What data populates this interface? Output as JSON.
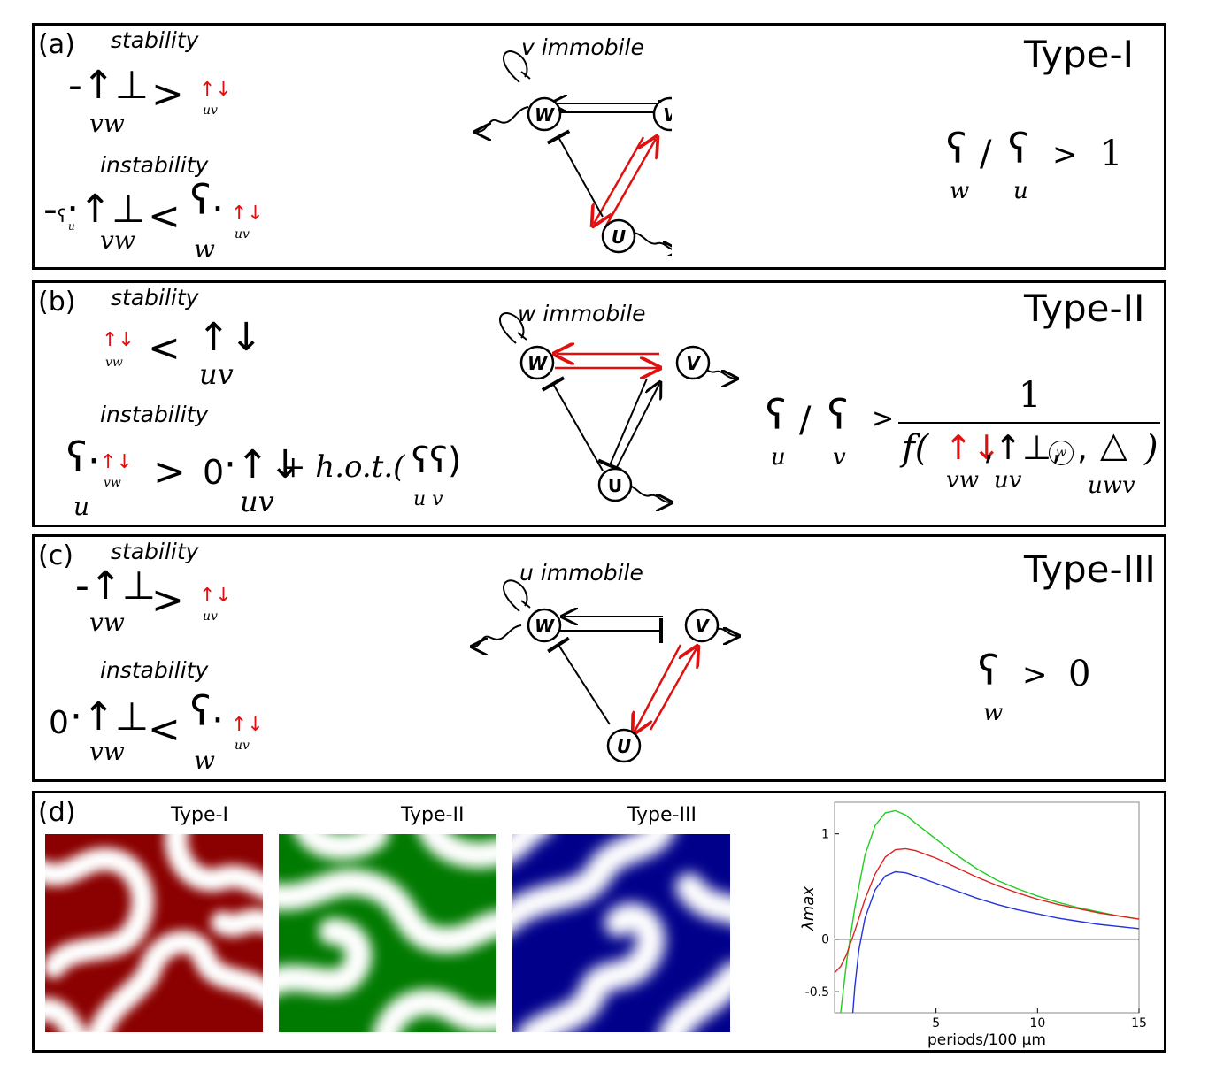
{
  "panels": [
    {
      "label": "(a)",
      "type": "Type-I",
      "stability": "stability",
      "instability": "instability",
      "immobile": "v immobile",
      "sub_vw": "vw",
      "sub_uv": "uv",
      "sub_w": "w",
      "sub_u": "u",
      "ratio_rhs": "1"
    },
    {
      "label": "(b)",
      "type": "Type-II",
      "stability": "stability",
      "instability": "instability",
      "immobile": "w immobile",
      "sub_vw": "vw",
      "sub_uv": "uv",
      "sub_u": "u",
      "sub_v": "v",
      "sub_uwv": "uwv",
      "sub_uv_pair": "u v",
      "zero": "0",
      "hot": "+ h.o.t.(",
      "ratio_num": "1",
      "f_label": "f(",
      "f_close": ")"
    },
    {
      "label": "(c)",
      "type": "Type-III",
      "stability": "stability",
      "instability": "instability",
      "immobile": "u immobile",
      "sub_vw": "vw",
      "sub_uv": "uv",
      "sub_w": "w",
      "zero": "0",
      "ratio_rhs": "0"
    }
  ],
  "nodes": {
    "w": "W",
    "v": "V",
    "u": "U"
  },
  "panel_d": {
    "label": "(d)",
    "pattern_titles": [
      "Type-I",
      "Type-II",
      "Type-III"
    ],
    "pattern_colors": [
      "#8b0000",
      "#007a00",
      "#00008b"
    ]
  },
  "chart_data": {
    "type": "line",
    "xlabel": "periods/100 μm",
    "ylabel": "λmax",
    "xlim": [
      0,
      15
    ],
    "ylim": [
      -0.7,
      1.3
    ],
    "xticks": [
      5,
      10,
      15
    ],
    "yticks": [
      {
        "v": 1,
        "t": "1"
      },
      {
        "v": 0,
        "t": "0"
      },
      {
        "v": -0.5,
        "t": "-0.5"
      }
    ],
    "series": [
      {
        "color": "#22cc22",
        "x": [
          0.3,
          0.6,
          1.0,
          1.5,
          2.0,
          2.5,
          3.0,
          3.5,
          4.0,
          5.0,
          6.0,
          7.0,
          8.0,
          9.0,
          10.0,
          11.0,
          12.0,
          13.0,
          14.0,
          15.0
        ],
        "y": [
          -0.7,
          -0.2,
          0.3,
          0.8,
          1.08,
          1.2,
          1.22,
          1.18,
          1.1,
          0.95,
          0.8,
          0.67,
          0.56,
          0.48,
          0.41,
          0.35,
          0.3,
          0.26,
          0.22,
          0.19
        ]
      },
      {
        "color": "#dd2222",
        "x": [
          0.0,
          0.3,
          0.6,
          1.0,
          1.5,
          2.0,
          2.5,
          3.0,
          3.5,
          4.0,
          5.0,
          6.0,
          7.0,
          8.0,
          9.0,
          10.0,
          11.0,
          12.0,
          13.0,
          14.0,
          15.0
        ],
        "y": [
          -0.32,
          -0.26,
          -0.14,
          0.08,
          0.38,
          0.62,
          0.78,
          0.85,
          0.86,
          0.84,
          0.77,
          0.68,
          0.59,
          0.51,
          0.44,
          0.38,
          0.33,
          0.29,
          0.25,
          0.22,
          0.19
        ]
      },
      {
        "color": "#2233dd",
        "x": [
          0.9,
          1.0,
          1.2,
          1.5,
          2.0,
          2.5,
          3.0,
          3.5,
          4.0,
          5.0,
          6.0,
          7.0,
          8.0,
          9.0,
          10.0,
          11.0,
          12.0,
          13.0,
          14.0,
          15.0
        ],
        "y": [
          -0.7,
          -0.45,
          -0.1,
          0.2,
          0.47,
          0.6,
          0.64,
          0.63,
          0.6,
          0.53,
          0.46,
          0.39,
          0.33,
          0.28,
          0.24,
          0.2,
          0.17,
          0.14,
          0.12,
          0.1
        ]
      }
    ]
  }
}
